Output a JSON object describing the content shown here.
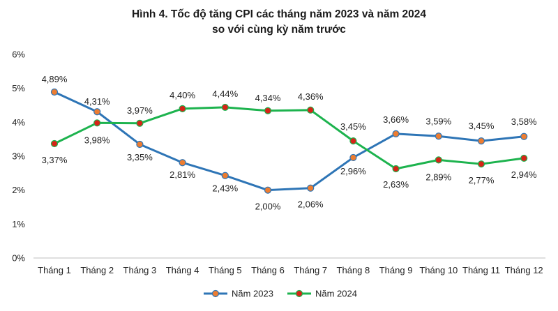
{
  "chart_data": {
    "type": "line",
    "title_line1": "Hình 4. Tốc độ tăng CPI các tháng năm 2023 và năm 2024",
    "title_line2": "so với cùng kỳ năm trước",
    "categories": [
      "Tháng 1",
      "Tháng 2",
      "Tháng 3",
      "Tháng 4",
      "Tháng 5",
      "Tháng 6",
      "Tháng 7",
      "Tháng 8",
      "Tháng 9",
      "Tháng 10",
      "Tháng 11",
      "Tháng 12"
    ],
    "yticks": [
      "0%",
      "1%",
      "2%",
      "3%",
      "4%",
      "5%",
      "6%"
    ],
    "ylim": [
      0,
      6
    ],
    "grid": false,
    "legend_position": "bottom",
    "series": [
      {
        "name": "Năm 2023",
        "color": "#2E75B6",
        "marker_color": "#ED7D31",
        "values": [
          4.89,
          4.31,
          3.35,
          2.81,
          2.43,
          2.0,
          2.06,
          2.96,
          3.66,
          3.59,
          3.45,
          3.58
        ],
        "labels": [
          "4,89%",
          "4,31%",
          "3,35%",
          "2,81%",
          "2,43%",
          "2,00%",
          "2,06%",
          "2,96%",
          "3,66%",
          "3,59%",
          "3,45%",
          "3,58%"
        ]
      },
      {
        "name": "Năm 2024",
        "color": "#1DB34E",
        "marker_color": "#D62418",
        "values": [
          3.37,
          3.98,
          3.97,
          4.4,
          4.44,
          4.34,
          4.36,
          3.45,
          2.63,
          2.89,
          2.77,
          2.94
        ],
        "labels": [
          "3,37%",
          "3,98%",
          "3,97%",
          "4,40%",
          "4,44%",
          "4,34%",
          "4,36%",
          "3,45%",
          "2,63%",
          "2,89%",
          "2,77%",
          "2,94%"
        ]
      }
    ]
  }
}
